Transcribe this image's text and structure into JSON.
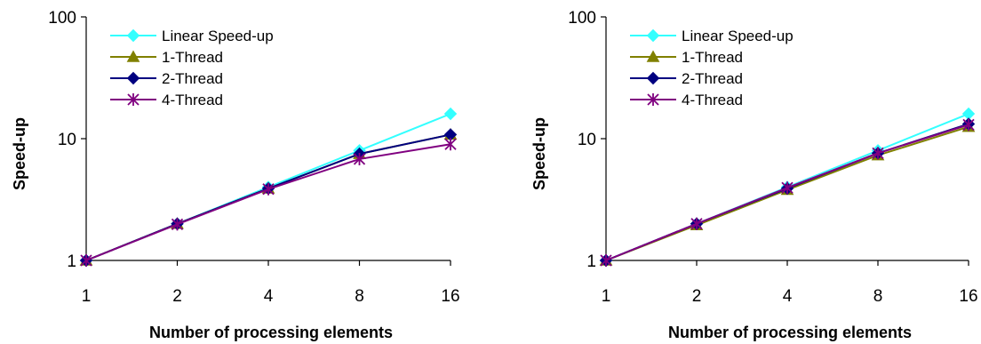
{
  "chart_data": [
    {
      "type": "line",
      "xlabel": "Number of processing elements",
      "ylabel": "Speed-up",
      "y_scale": "log",
      "ylim": [
        1,
        100
      ],
      "grid": false,
      "legend_position": "top-left",
      "categories": [
        "1",
        "2",
        "4",
        "8",
        "16"
      ],
      "y_ticks": [
        "1",
        "10",
        "100"
      ],
      "series": [
        {
          "name": "Linear Speed-up",
          "color": "#33FFFF",
          "marker": "diamond",
          "values": [
            1,
            2,
            4,
            8,
            16
          ]
        },
        {
          "name": "1-Thread",
          "color": "#808000",
          "marker": "triangle",
          "values": [
            1,
            2,
            3.9,
            7.5,
            10.8
          ]
        },
        {
          "name": "2-Thread",
          "color": "#000080",
          "marker": "diamond",
          "values": [
            1,
            2,
            3.9,
            7.5,
            10.8
          ]
        },
        {
          "name": "4-Thread",
          "color": "#800080",
          "marker": "star",
          "values": [
            1,
            1.98,
            3.85,
            6.8,
            9.0
          ]
        }
      ]
    },
    {
      "type": "line",
      "xlabel": "Number of processing elements",
      "ylabel": "Speed-up",
      "y_scale": "log",
      "ylim": [
        1,
        100
      ],
      "grid": false,
      "legend_position": "top-left",
      "categories": [
        "1",
        "2",
        "4",
        "8",
        "16"
      ],
      "y_ticks": [
        "1",
        "10",
        "100"
      ],
      "series": [
        {
          "name": "Linear Speed-up",
          "color": "#33FFFF",
          "marker": "diamond",
          "values": [
            1,
            2,
            4,
            8,
            16
          ]
        },
        {
          "name": "1-Thread",
          "color": "#808000",
          "marker": "triangle",
          "values": [
            1,
            1.95,
            3.8,
            7.3,
            12.5
          ]
        },
        {
          "name": "2-Thread",
          "color": "#000080",
          "marker": "diamond",
          "values": [
            1,
            2,
            3.9,
            7.6,
            13.2
          ]
        },
        {
          "name": "4-Thread",
          "color": "#800080",
          "marker": "star",
          "values": [
            1,
            2,
            3.95,
            7.6,
            13.0
          ]
        }
      ]
    }
  ]
}
